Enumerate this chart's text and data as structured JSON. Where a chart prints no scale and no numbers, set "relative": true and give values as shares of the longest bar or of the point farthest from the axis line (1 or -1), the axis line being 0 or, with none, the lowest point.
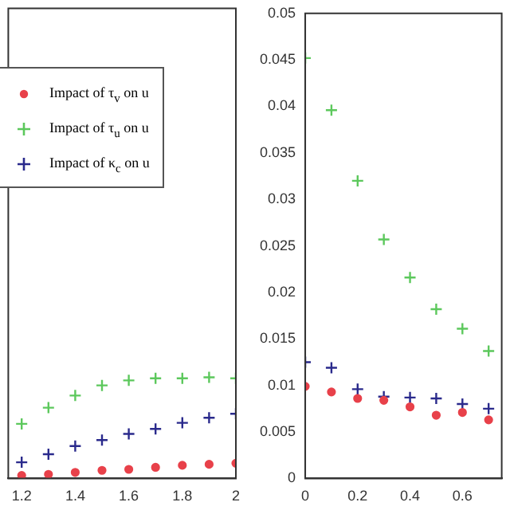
{
  "chart_data": [
    {
      "type": "scatter",
      "relative": true,
      "x": [
        1.2,
        1.3,
        1.4,
        1.5,
        1.6,
        1.7,
        1.8,
        1.9,
        2.0
      ],
      "xlim": [
        1.15,
        2
      ],
      "xticks": [
        {
          "value": 1.2,
          "label": "1.2"
        },
        {
          "value": 1.4,
          "label": "1.4"
        },
        {
          "value": 1.6,
          "label": "1.6"
        },
        {
          "value": 1.8,
          "label": "1.8"
        },
        {
          "value": 2,
          "label": "2"
        }
      ],
      "legend": "left",
      "tick_labels": "x",
      "series": [
        {
          "name": "Impact of τ$_{v}$ on u",
          "color": "#e8414a",
          "marker": "circle",
          "values": [
            0.03,
            0.04,
            0.06,
            0.08,
            0.09,
            0.11,
            0.13,
            0.14,
            0.15
          ]
        },
        {
          "name": "Impact of τ$_{u}$ on u",
          "color": "#5cc85c",
          "marker": "cross",
          "values": [
            0.54,
            0.7,
            0.82,
            0.92,
            0.97,
            0.99,
            0.99,
            1,
            0.99
          ]
        },
        {
          "name": "Impact of κ$_{c}$ on u",
          "color": "#2a2a8c",
          "marker": "cross",
          "values": [
            0.16,
            0.24,
            0.32,
            0.38,
            0.44,
            0.49,
            0.55,
            0.6,
            0.64
          ]
        }
      ]
    },
    {
      "type": "scatter",
      "x": [
        0,
        0.1,
        0.2,
        0.3,
        0.4,
        0.5,
        0.6,
        0.7
      ],
      "xlim": [
        0,
        0.75
      ],
      "xticks": [
        0,
        0.2,
        0.4,
        0.6
      ],
      "ylim": [
        0,
        0.05
      ],
      "yticks": [
        0,
        0.005,
        0.01,
        0.015,
        0.02,
        0.025,
        0.03,
        0.035,
        0.04,
        0.045,
        0.05
      ],
      "series": [
        {
          "color": "#e8414a",
          "marker": "circle",
          "values": [
            0.0099,
            0.0093,
            0.0086,
            0.0084,
            0.0077,
            0.0068,
            0.0071,
            0.0063
          ]
        },
        {
          "color": "#5cc85c",
          "marker": "cross",
          "values": [
            0.0452,
            0.0396,
            0.032,
            0.0257,
            0.0216,
            0.0182,
            0.0161,
            0.0137
          ]
        },
        {
          "color": "#2a2a8c",
          "marker": "cross",
          "values": [
            0.0125,
            0.0119,
            0.0096,
            0.0088,
            0.0087,
            0.0086,
            0.008,
            0.0075
          ]
        }
      ]
    }
  ]
}
